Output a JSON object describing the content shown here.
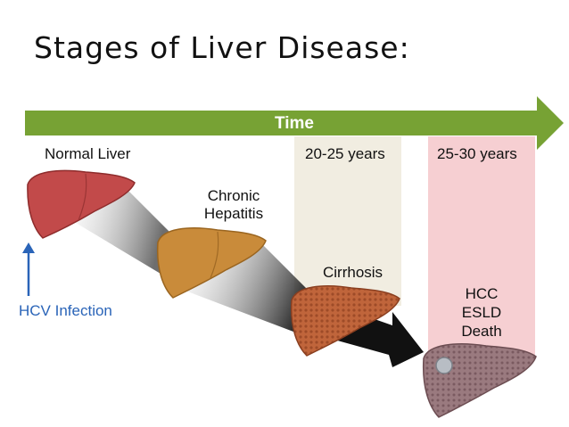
{
  "title": "Stages of Liver Disease:",
  "timeline": {
    "label": "Time"
  },
  "stages": {
    "normal": "Normal Liver",
    "chronic_line1": "Chronic",
    "chronic_line2": "Hepatitis",
    "cirrhosis": "Cirrhosis",
    "end_line1": "HCC",
    "end_line2": "ESLD",
    "end_line3": "Death"
  },
  "bands": {
    "first": "20-25 years",
    "second": "25-30 years"
  },
  "infection": {
    "label": "HCV Infection"
  },
  "colors": {
    "arrow": "#77a234",
    "band_first": "#f1ede1",
    "band_second": "#f6cfd2",
    "normal_liver": "#c24a4a",
    "hepatitis_liver": "#c98b3a",
    "cirrhosis_liver": "#c0653b",
    "end_liver": "#9a7a7f",
    "infection_text": "#2a64b8"
  }
}
